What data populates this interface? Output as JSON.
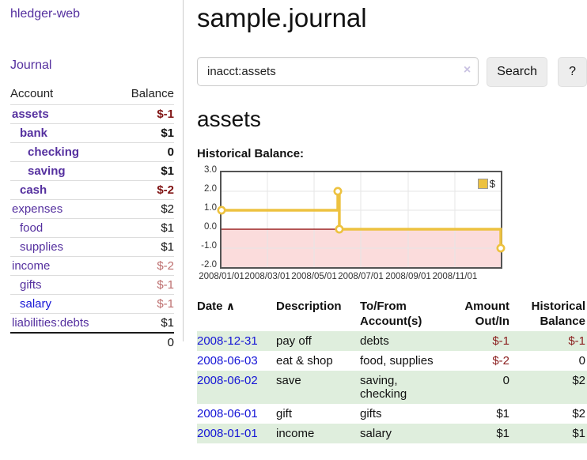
{
  "colors": {
    "link_purple": "#55309f",
    "link_blue": "#1515d6",
    "negative_strong": "#7f1212",
    "negative_soft": "#bd6e6e",
    "negative_register": "#8b2020",
    "row_stripe_green": "#dfeedd",
    "series_gold": "#edc240",
    "chart_negative_fill": "#fbdcdc",
    "chart_zero_line": "#8b0000",
    "chart_grid": "#e6e6e6",
    "chart_border": "#545454"
  },
  "app": {
    "title": "hledger-web",
    "journal_nav": "Journal"
  },
  "sidebar": {
    "account_column": "Account",
    "balance_column": "Balance",
    "accounts": [
      {
        "name": "assets",
        "balance": "$-1",
        "level": 1,
        "bold": true,
        "negative": "strong"
      },
      {
        "name": "bank",
        "balance": "$1",
        "level": 2,
        "bold": true
      },
      {
        "name": "checking",
        "balance": "0",
        "level": 3,
        "bold": true
      },
      {
        "name": "saving",
        "balance": "$1",
        "level": 3,
        "bold": true
      },
      {
        "name": "cash",
        "balance": "$-2",
        "level": 2,
        "bold": true,
        "negative": "strong"
      },
      {
        "name": "expenses",
        "balance": "$2",
        "level": 1
      },
      {
        "name": "food",
        "balance": "$1",
        "level": 2
      },
      {
        "name": "supplies",
        "balance": "$1",
        "level": 2
      },
      {
        "name": "income",
        "balance": "$-2",
        "level": 1,
        "negative": "soft"
      },
      {
        "name": "gifts",
        "balance": "$-1",
        "level": 2,
        "negative": "soft"
      },
      {
        "name": "salary",
        "balance": "$-1",
        "level": 2,
        "negative": "soft",
        "link_color": "blue"
      },
      {
        "name": "liabilities:debts",
        "balance": "$1",
        "level": 1
      }
    ],
    "total": "0"
  },
  "page": {
    "title": "sample.journal",
    "account_heading": "assets",
    "chart_heading": "Historical Balance:"
  },
  "search": {
    "value": "inacct:assets",
    "clear_label": "×",
    "submit_label": "Search",
    "help_label": "?"
  },
  "chart_data": {
    "type": "line",
    "step": true,
    "markers": true,
    "title": "Historical Balance",
    "series": [
      {
        "name": "$",
        "color": "#edc240",
        "points": [
          [
            "2008-01-01",
            1
          ],
          [
            "2008-06-01",
            2
          ],
          [
            "2008-06-03",
            0
          ],
          [
            "2008-12-31",
            -1
          ]
        ]
      }
    ],
    "x_range": [
      "2008-01-01",
      "2008-12-31"
    ],
    "ylim": [
      -2,
      3
    ],
    "yticks": [
      "3.0",
      "2.0",
      "1.0",
      "0.0",
      "-1.0",
      "-2.0"
    ],
    "xticks": [
      "2008/01/01",
      "2008/03/01",
      "2008/05/01",
      "2008/07/01",
      "2008/09/01",
      "2008/11/01"
    ],
    "legend_position": "top-right",
    "grid": true
  },
  "register": {
    "columns": {
      "date": "Date",
      "sort_indicator": "∧",
      "description": "Description",
      "accounts": "To/From Account(s)",
      "amount": "Amount Out/In",
      "balance": "Historical Balance"
    },
    "rows": [
      {
        "date": "2008-12-31",
        "description": "pay off",
        "accounts": "debts",
        "amount": "$-1",
        "balance": "$-1",
        "amount_negative": true,
        "balance_negative": true
      },
      {
        "date": "2008-06-03",
        "description": "eat & shop",
        "accounts": "food, supplies",
        "amount": "$-2",
        "balance": "0",
        "amount_negative": true
      },
      {
        "date": "2008-06-02",
        "description": "save",
        "accounts": "saving, checking",
        "amount": "0",
        "balance": "$2"
      },
      {
        "date": "2008-06-01",
        "description": "gift",
        "accounts": "gifts",
        "amount": "$1",
        "balance": "$2"
      },
      {
        "date": "2008-01-01",
        "description": "income",
        "accounts": "salary",
        "amount": "$1",
        "balance": "$1"
      }
    ]
  }
}
